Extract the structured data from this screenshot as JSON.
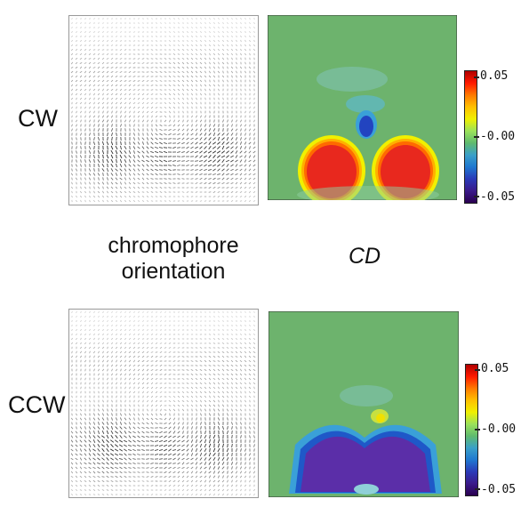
{
  "rows": [
    {
      "label": "CW",
      "cd_sign": "positive"
    },
    {
      "label": "CCW",
      "cd_sign": "negative"
    }
  ],
  "captions": {
    "left": "chromophore\norientation",
    "right": "CD"
  },
  "colorbar": {
    "ticks": [
      "0.05",
      "-0.00",
      "-0.05"
    ],
    "max": 0.05,
    "min": -0.05,
    "colors": [
      "#b00000",
      "#ff1a00",
      "#ff7a00",
      "#ffc000",
      "#f0f000",
      "#9be25a",
      "#5fba6e",
      "#3aa0c8",
      "#1f78d0",
      "#2a3ab8",
      "#3a1a8a",
      "#2a0050"
    ]
  },
  "colors": {
    "background_field": "#6db36d",
    "positive_peak": "#e8281e",
    "negative_peak": "#5b2ea8"
  }
}
